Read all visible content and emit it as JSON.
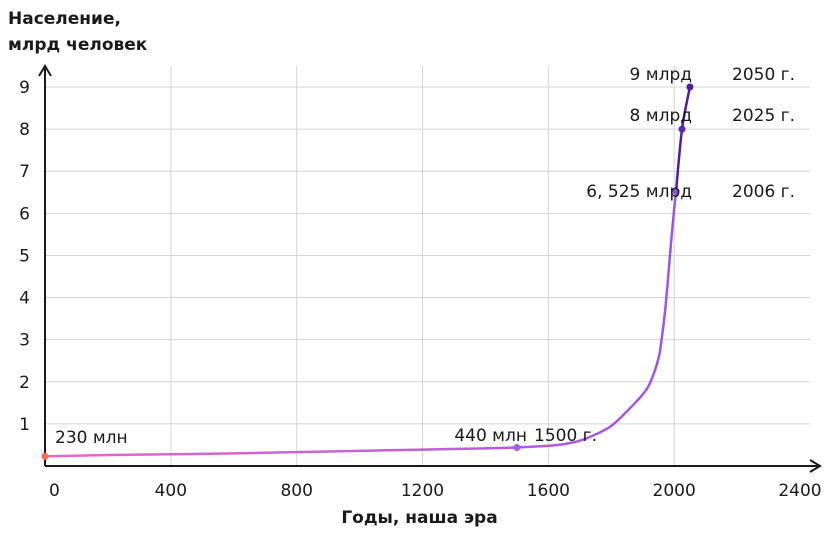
{
  "chart_data": {
    "type": "line",
    "ylabel_line1": "Население,",
    "ylabel_line2": "млрд человек",
    "xlabel": "Годы, наша эра",
    "xlim": [
      0,
      2400
    ],
    "ylim": [
      0,
      9
    ],
    "x_ticks": [
      0,
      400,
      800,
      1200,
      1600,
      2000,
      2400
    ],
    "x_tick_labels": [
      "0",
      "400",
      "800",
      "1200",
      "1600",
      "2000",
      "2400"
    ],
    "y_ticks": [
      1,
      2,
      3,
      4,
      5,
      6,
      7,
      8,
      9
    ],
    "y_tick_labels": [
      "1",
      "2",
      "3",
      "4",
      "5",
      "6",
      "7",
      "8",
      "9"
    ],
    "grid": true,
    "series": [
      {
        "x": [
          0,
          200,
          400,
          600,
          800,
          1000,
          1200,
          1400,
          1500,
          1600,
          1650,
          1700,
          1750,
          1800,
          1850,
          1900,
          1925,
          1950,
          1960,
          1970,
          1980,
          1990,
          2000,
          2006
        ],
        "y": [
          0.23,
          0.26,
          0.28,
          0.3,
          0.33,
          0.36,
          0.39,
          0.42,
          0.44,
          0.48,
          0.52,
          0.6,
          0.75,
          0.95,
          1.3,
          1.7,
          2.0,
          2.55,
          3.0,
          3.6,
          4.4,
          5.3,
          6.1,
          6.525
        ],
        "color": "#a65fe0"
      },
      {
        "x": [
          2006,
          2025,
          2050
        ],
        "y": [
          6.525,
          8,
          9
        ],
        "color": "#4b1fa0"
      }
    ],
    "points": [
      {
        "x": 0,
        "y": 0.23,
        "color": "#f07050",
        "label": "230 млн",
        "year": ""
      },
      {
        "x": 1500,
        "y": 0.44,
        "color": "#a65fe0",
        "label": "440 млн",
        "year": "1500 г."
      },
      {
        "x": 2006,
        "y": 6.525,
        "color": "#8a4ee0",
        "label": "6, 525 млрд",
        "year": "2006 г."
      },
      {
        "x": 2025,
        "y": 8,
        "color": "#5a28b0",
        "label": "8 млрд",
        "year": "2025 г."
      },
      {
        "x": 2050,
        "y": 9,
        "color": "#4b1fa0",
        "label": "9 млрд",
        "year": "2050 г."
      }
    ]
  }
}
